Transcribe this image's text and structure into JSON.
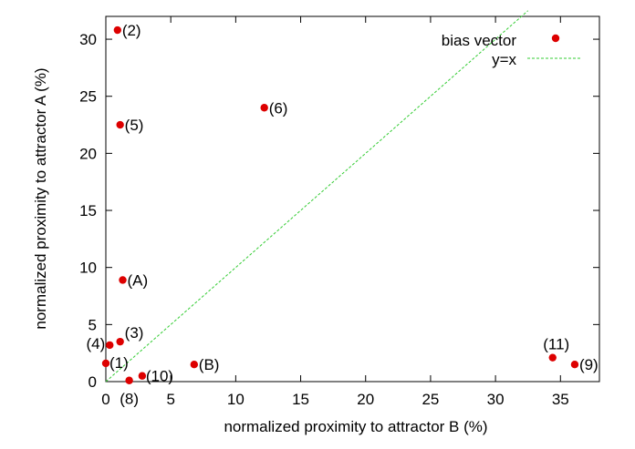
{
  "chart_data": {
    "type": "scatter",
    "title": "",
    "xlabel": "normalized proximity to attractor B (%)",
    "ylabel": "normalized proximity to attractor A (%)",
    "xlim": [
      0,
      38
    ],
    "ylim": [
      0,
      32
    ],
    "xticks": [
      0,
      5,
      10,
      15,
      20,
      25,
      30,
      35
    ],
    "yticks": [
      0,
      5,
      10,
      15,
      20,
      25,
      30
    ],
    "grid": false,
    "legend_position": "top-right",
    "series": [
      {
        "name": "bias vector",
        "color": "#dd0000",
        "marker": "filled-circle",
        "points": [
          {
            "x": 0.0,
            "y": 1.6,
            "label": "(1)"
          },
          {
            "x": 0.9,
            "y": 30.8,
            "label": "(2)"
          },
          {
            "x": 1.1,
            "y": 3.5,
            "label": "(3)"
          },
          {
            "x": 0.3,
            "y": 3.2,
            "label": "(4)"
          },
          {
            "x": 1.1,
            "y": 22.5,
            "label": "(5)"
          },
          {
            "x": 12.2,
            "y": 24.0,
            "label": "(6)"
          },
          {
            "x": 1.8,
            "y": 0.1,
            "label": "(8)"
          },
          {
            "x": 36.1,
            "y": 1.5,
            "label": "(9)"
          },
          {
            "x": 2.8,
            "y": 0.5,
            "label": "(10)"
          },
          {
            "x": 34.4,
            "y": 2.1,
            "label": "(11)"
          },
          {
            "x": 1.3,
            "y": 8.9,
            "label": "(A)"
          },
          {
            "x": 6.8,
            "y": 1.5,
            "label": "(B)"
          }
        ]
      },
      {
        "name": "y=x",
        "color": "#33cc33",
        "line_style": "dashed",
        "x": [
          0,
          32.5
        ],
        "y": [
          0,
          32.5
        ]
      }
    ]
  }
}
